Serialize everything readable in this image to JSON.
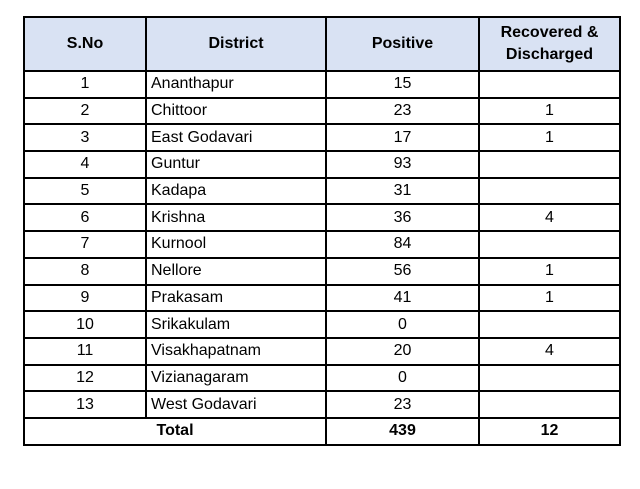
{
  "headers": {
    "sno": "S.No",
    "district": "District",
    "positive": "Positive",
    "recovered_line1": "Recovered &",
    "recovered_line2": "Discharged"
  },
  "rows": [
    {
      "sno": "1",
      "district": "Ananthapur",
      "positive": "15",
      "recovered": ""
    },
    {
      "sno": "2",
      "district": "Chittoor",
      "positive": "23",
      "recovered": "1"
    },
    {
      "sno": "3",
      "district": "East Godavari",
      "positive": "17",
      "recovered": "1"
    },
    {
      "sno": "4",
      "district": "Guntur",
      "positive": "93",
      "recovered": ""
    },
    {
      "sno": "5",
      "district": "Kadapa",
      "positive": "31",
      "recovered": ""
    },
    {
      "sno": "6",
      "district": "Krishna",
      "positive": "36",
      "recovered": "4"
    },
    {
      "sno": "7",
      "district": "Kurnool",
      "positive": "84",
      "recovered": ""
    },
    {
      "sno": "8",
      "district": "Nellore",
      "positive": "56",
      "recovered": "1"
    },
    {
      "sno": "9",
      "district": "Prakasam",
      "positive": "41",
      "recovered": "1"
    },
    {
      "sno": "10",
      "district": "Srikakulam",
      "positive": "0",
      "recovered": ""
    },
    {
      "sno": "11",
      "district": "Visakhapatnam",
      "positive": "20",
      "recovered": "4"
    },
    {
      "sno": "12",
      "district": "Vizianagaram",
      "positive": "0",
      "recovered": ""
    },
    {
      "sno": "13",
      "district": "West Godavari",
      "positive": "23",
      "recovered": ""
    }
  ],
  "total": {
    "label": "Total",
    "positive": "439",
    "recovered": "12"
  },
  "colors": {
    "header_background": "#d9e2f3",
    "border": "#000000"
  }
}
